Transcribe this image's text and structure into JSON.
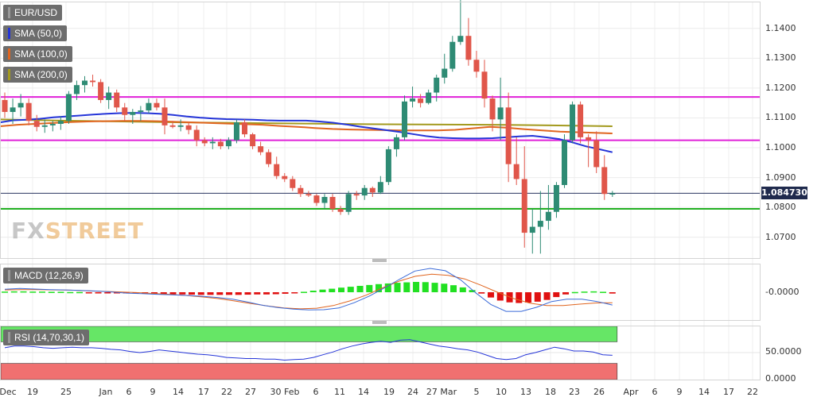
{
  "legend": {
    "symbol": "EUR/USD",
    "sma50": "SMA (50,0)",
    "sma100": "SMA (100,0)",
    "sma200": "SMA (200,0)",
    "macd": "MACD (12,26,9)",
    "rsi": "RSI (14,70,30,1)"
  },
  "colors": {
    "bull": "#2e8b74",
    "bear": "#e0564a",
    "sma50": "#2434d8",
    "sma100": "#e0651f",
    "sma200": "#a39a1e",
    "resistance": "#e020d8",
    "support": "#22b022",
    "macd_line": "#3a6ad8",
    "signal_line": "#e0651f",
    "hist_pos": "#22e022",
    "hist_neg": "#e01010",
    "rsi_line": "#2434d8",
    "overbought_zone": "#66e666",
    "oversold_zone": "#f07070",
    "price_tag": "#1f2a4d"
  },
  "logo": {
    "part1": "FX",
    "part2": "STREET"
  },
  "price_tag": "1.084730",
  "chart_data": [
    {
      "type": "candlestick",
      "title": "EUR/USD",
      "ylim": [
        1.063,
        1.149
      ],
      "y_ticks": [
        "1.1400",
        "1.1300",
        "1.1200",
        "1.1100",
        "1.1000",
        "1.0900",
        "1.0800",
        "1.0700"
      ],
      "x_tick_labels": [
        "Dec",
        "19",
        "25",
        "Jan",
        "6",
        "9",
        "14",
        "17",
        "22",
        "27",
        "30 Feb",
        "6",
        "11",
        "14",
        "19",
        "24",
        "27 Mar",
        "5",
        "10",
        "13",
        "18",
        "23",
        "26",
        "Apr",
        "6",
        "9",
        "14",
        "17",
        "22"
      ],
      "last_price": 1.08473,
      "grid": true,
      "candles": [
        [
          1.116,
          1.1185,
          1.11,
          1.112
        ],
        [
          1.112,
          1.1165,
          1.108,
          1.1135
        ],
        [
          1.1135,
          1.118,
          1.1105,
          1.115
        ],
        [
          1.115,
          1.1165,
          1.1075,
          1.109
        ],
        [
          1.109,
          1.111,
          1.1055,
          1.107
        ],
        [
          1.107,
          1.1095,
          1.105,
          1.1075
        ],
        [
          1.1075,
          1.109,
          1.1055,
          1.108
        ],
        [
          1.108,
          1.1105,
          1.106,
          1.109
        ],
        [
          1.109,
          1.119,
          1.108,
          1.118
        ],
        [
          1.118,
          1.1225,
          1.116,
          1.121
        ],
        [
          1.121,
          1.124,
          1.1185,
          1.1225
        ],
        [
          1.1225,
          1.1245,
          1.1205,
          1.122
        ],
        [
          1.122,
          1.123,
          1.115,
          1.116
        ],
        [
          1.116,
          1.1205,
          1.113,
          1.1185
        ],
        [
          1.1185,
          1.1195,
          1.112,
          1.1135
        ],
        [
          1.1135,
          1.115,
          1.109,
          1.111
        ],
        [
          1.111,
          1.113,
          1.108,
          1.112
        ],
        [
          1.112,
          1.114,
          1.109,
          1.1125
        ],
        [
          1.1125,
          1.1165,
          1.1115,
          1.115
        ],
        [
          1.115,
          1.1165,
          1.1125,
          1.1135
        ],
        [
          1.1135,
          1.1165,
          1.1045,
          1.1075
        ],
        [
          1.1075,
          1.109,
          1.1065,
          1.107
        ],
        [
          1.107,
          1.1095,
          1.1055,
          1.1075
        ],
        [
          1.1075,
          1.1085,
          1.1045,
          1.106
        ],
        [
          1.106,
          1.1075,
          1.1005,
          1.1025
        ],
        [
          1.1025,
          1.1035,
          1.1005,
          1.1015
        ],
        [
          1.1015,
          1.1035,
          1.0995,
          1.102
        ],
        [
          1.102,
          1.103,
          1.0995,
          1.1005
        ],
        [
          1.1005,
          1.1035,
          1.0995,
          1.1025
        ],
        [
          1.1025,
          1.1095,
          1.1015,
          1.1085
        ],
        [
          1.1085,
          1.1095,
          1.1035,
          1.1045
        ],
        [
          1.1045,
          1.105,
          1.0995,
          1.1005
        ],
        [
          1.1005,
          1.102,
          1.0975,
          1.0985
        ],
        [
          1.0985,
          1.0995,
          1.0935,
          1.0945
        ],
        [
          1.0945,
          1.097,
          1.0895,
          1.0905
        ],
        [
          1.0905,
          1.0915,
          1.0885,
          1.0895
        ],
        [
          1.0895,
          1.0905,
          1.0855,
          1.0865
        ],
        [
          1.0865,
          1.0875,
          1.0835,
          1.0845
        ],
        [
          1.0845,
          1.0855,
          1.0835,
          1.084
        ],
        [
          1.084,
          1.0845,
          1.0805,
          1.0815
        ],
        [
          1.0815,
          1.0845,
          1.0795,
          1.0835
        ],
        [
          1.0835,
          1.0845,
          1.0785,
          1.0795
        ],
        [
          1.0795,
          1.0805,
          1.0775,
          1.0785
        ],
        [
          1.0785,
          1.0855,
          1.0775,
          1.0845
        ],
        [
          1.0845,
          1.0855,
          1.0825,
          1.084
        ],
        [
          1.084,
          1.0875,
          1.0825,
          1.0865
        ],
        [
          1.0865,
          1.087,
          1.0835,
          1.085
        ],
        [
          1.085,
          1.0905,
          1.0845,
          1.0885
        ],
        [
          1.0885,
          1.1005,
          1.0875,
          1.0995
        ],
        [
          1.0995,
          1.1045,
          1.097,
          1.1035
        ],
        [
          1.1035,
          1.1175,
          1.1025,
          1.1155
        ],
        [
          1.1155,
          1.1205,
          1.1135,
          1.1165
        ],
        [
          1.1165,
          1.118,
          1.1135,
          1.115
        ],
        [
          1.115,
          1.1195,
          1.1145,
          1.1185
        ],
        [
          1.1185,
          1.1245,
          1.1155,
          1.1235
        ],
        [
          1.1235,
          1.1315,
          1.1215,
          1.1265
        ],
        [
          1.1265,
          1.1375,
          1.1255,
          1.1355
        ],
        [
          1.1355,
          1.1495,
          1.1345,
          1.1375
        ],
        [
          1.1375,
          1.1435,
          1.1275,
          1.1295
        ],
        [
          1.1295,
          1.1325,
          1.1235,
          1.1255
        ],
        [
          1.1255,
          1.1295,
          1.1135,
          1.1165
        ],
        [
          1.1165,
          1.1175,
          1.1055,
          1.1095
        ],
        [
          1.1095,
          1.1235,
          1.1025,
          1.1135
        ],
        [
          1.1135,
          1.1185,
          1.0885,
          1.0945
        ],
        [
          1.0945,
          1.1035,
          1.0875,
          1.0895
        ],
        [
          1.0895,
          1.1005,
          1.0665,
          1.0715
        ],
        [
          1.0715,
          1.0795,
          1.0645,
          1.0735
        ],
        [
          1.0735,
          1.0855,
          1.0645,
          1.0755
        ],
        [
          1.0755,
          1.0875,
          1.0725,
          1.0785
        ],
        [
          1.0785,
          1.0885,
          1.0765,
          1.0875
        ],
        [
          1.0875,
          1.1045,
          1.0865,
          1.1025
        ],
        [
          1.1025,
          1.1155,
          1.1015,
          1.1145
        ],
        [
          1.1145,
          1.1155,
          1.1015,
          1.1035
        ],
        [
          1.1035,
          1.1045,
          1.0935,
          1.1025
        ],
        [
          1.1025,
          1.1055,
          1.0915,
          1.0935
        ],
        [
          1.0935,
          1.0975,
          1.0825,
          1.0845
        ],
        [
          1.0845,
          1.0855,
          1.0835,
          1.08473
        ]
      ],
      "sma50": [
        1.1085,
        1.1092,
        1.1094,
        1.1097,
        1.1102,
        1.1105,
        1.1108,
        1.1111,
        1.1114,
        1.1116,
        1.1117,
        1.1116,
        1.1114,
        1.111,
        1.1105,
        1.1101,
        1.1098,
        1.1096,
        1.1095,
        1.1094,
        1.1092,
        1.1091,
        1.1091,
        1.1091,
        1.1088,
        1.1084,
        1.1078,
        1.1071,
        1.1065,
        1.1059,
        1.1053,
        1.1046,
        1.1039,
        1.1034,
        1.1032,
        1.1031,
        1.1031,
        1.1032,
        1.1035,
        1.1038,
        1.104,
        1.1035,
        1.1029,
        1.1018,
        1.1005,
        1.0995,
        1.0985
      ],
      "sma100": [
        1.1072,
        1.1077,
        1.108,
        1.1083,
        1.1086,
        1.1088,
        1.1089,
        1.109,
        1.109,
        1.1089,
        1.1087,
        1.1085,
        1.1083,
        1.1081,
        1.1079,
        1.1077,
        1.1073,
        1.107,
        1.1066,
        1.1063,
        1.1061,
        1.106,
        1.1059,
        1.1058,
        1.1058,
        1.1058,
        1.106,
        1.1065,
        1.107,
        1.1067,
        1.1062,
        1.1058,
        1.1054,
        1.1052,
        1.105,
        1.1048
      ],
      "sma200": [
        1.1095,
        1.1091,
        1.1088,
        1.1085,
        1.1083,
        1.1081,
        1.1079,
        1.1078,
        1.1077,
        1.1075,
        1.1072
      ],
      "resistance": [
        1.117,
        1.1025
      ],
      "support": 1.0795
    },
    {
      "type": "macd",
      "title": "MACD (12,26,9)",
      "y_tick": "-0.0000",
      "histogram": [
        0.0003,
        0.0004,
        0.0004,
        0.0003,
        0.0003,
        0.0002,
        0.0002,
        0.0001,
        0.0001,
        -0.0001,
        -0.0002,
        -0.0002,
        -0.0003,
        -0.0004,
        -0.0005,
        -0.0006,
        -0.0007,
        -0.0008,
        -0.0009,
        -0.001,
        -0.0011,
        -0.0012,
        -0.0012,
        -0.0012,
        -0.0012,
        -0.0012,
        -0.0011,
        -0.001,
        -0.001,
        -0.0009,
        -0.0007,
        -0.0003,
        0.0002,
        0.0007,
        0.0012,
        0.0016,
        0.0021,
        0.0025,
        0.0029,
        0.0033,
        0.0037,
        0.004,
        0.0043,
        0.0045,
        0.0047,
        0.0046,
        0.0043,
        0.0039,
        0.0032,
        0.0022,
        0.001,
        -0.0006,
        -0.0024,
        -0.0038,
        -0.0046,
        -0.0049,
        -0.0047,
        -0.0043,
        -0.0035,
        -0.0022,
        -0.001,
        0.0001,
        0.0003,
        0.0004,
        0.0002,
        -0.0006
      ],
      "macd": [
        0.001,
        0.0013,
        0.0011,
        0.0009,
        0.0008,
        0.0006,
        0.0004,
        0.0001,
        -0.0003,
        -0.0005,
        -0.0007,
        -0.0009,
        -0.0011,
        -0.0014,
        -0.0018,
        -0.0024,
        -0.0034,
        -0.0045,
        -0.0053,
        -0.0058,
        -0.0061,
        -0.006,
        -0.0054,
        -0.0036,
        -0.0013,
        0.0015,
        0.0045,
        0.0073,
        0.0082,
        0.0074,
        0.0043,
        -0.0002,
        -0.0042,
        -0.0066,
        -0.0066,
        -0.0052,
        -0.0032,
        -0.0024,
        -0.0024,
        -0.0032,
        -0.0044
      ],
      "signal": [
        0.0008,
        0.0009,
        0.0009,
        0.0008,
        0.0007,
        0.0005,
        0.0003,
        0.0001,
        -0.0001,
        -0.0004,
        -0.0007,
        -0.0011,
        -0.0016,
        -0.0022,
        -0.003,
        -0.0039,
        -0.0047,
        -0.0054,
        -0.0057,
        -0.0055,
        -0.0046,
        -0.003,
        -0.001,
        0.0015,
        0.0038,
        0.0055,
        0.0062,
        0.0058,
        0.0046,
        0.0024,
        0.0,
        -0.0022,
        -0.0038,
        -0.0046,
        -0.0046,
        -0.0041,
        -0.0037,
        -0.0036
      ]
    },
    {
      "type": "rsi",
      "title": "RSI (14,70,30,1)",
      "ylim": [
        0,
        100
      ],
      "y_ticks": [
        "50.0000",
        "0.0000"
      ],
      "overbought": 70,
      "oversold": 30,
      "values": [
        59,
        62,
        62,
        61,
        59,
        58,
        59,
        60,
        59,
        59,
        58,
        56,
        55,
        52,
        50,
        52,
        55,
        53,
        51,
        49,
        47,
        46,
        44,
        41,
        40,
        39,
        39,
        38,
        38,
        36,
        37,
        38,
        41,
        46,
        51,
        57,
        62,
        66,
        69,
        71,
        69,
        73,
        74,
        70,
        66,
        62,
        60,
        57,
        55,
        51,
        45,
        39,
        37,
        39,
        46,
        50,
        55,
        60,
        57,
        53,
        53,
        51,
        46,
        45
      ]
    }
  ]
}
